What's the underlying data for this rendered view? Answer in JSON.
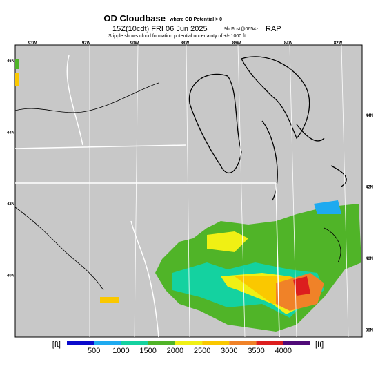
{
  "header": {
    "title": "OD Cloudbase",
    "subtitle": "where OD Potential > 0",
    "time": "15Z(10cdt) FRI 06 Jun 2025",
    "forecast": "9hrFcst@0654z",
    "model": "RAP",
    "note": "Stipple shows cloud formation potential uncertainty of +/- 1000 ft"
  },
  "map": {
    "top_labels": [
      "93W",
      "92W",
      "90W",
      "88W",
      "86W",
      "84W",
      "82W"
    ],
    "left_labels": [
      "46N",
      "44N",
      "42N",
      "40N"
    ],
    "right_labels": [
      "44N",
      "42N",
      "40N",
      "38N"
    ]
  },
  "colorbar": {
    "unit": "[ft]",
    "colors": [
      "#0a0acc",
      "#1eaaf0",
      "#14d2a0",
      "#50b428",
      "#f0f014",
      "#fac800",
      "#f08228",
      "#dc1e1e",
      "#500a78"
    ],
    "labels": [
      500,
      1000,
      1500,
      2000,
      2500,
      3000,
      3500,
      4000
    ]
  }
}
